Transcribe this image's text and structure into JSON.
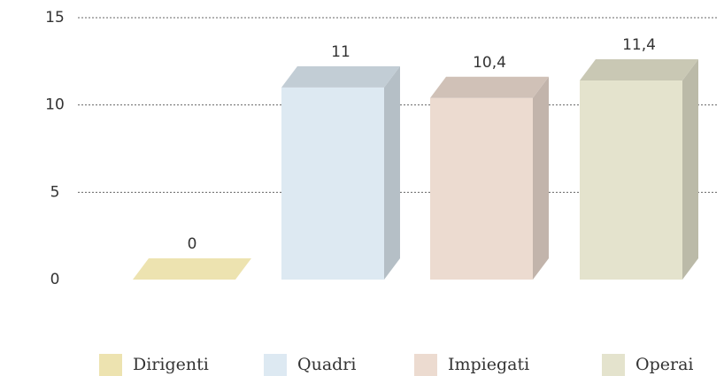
{
  "chart_data": {
    "type": "bar3d",
    "categories": [
      "Dirigenti",
      "Quadri",
      "Impiegati",
      "Operai"
    ],
    "values": [
      0,
      11,
      10.4,
      11.4
    ],
    "value_labels": [
      "0",
      "11",
      "10,4",
      "11,4"
    ],
    "colors": [
      "#ede3b0",
      "#dde9f2",
      "#ecdbd0",
      "#e4e3cd"
    ],
    "ylim": [
      0,
      15
    ],
    "yticks": [
      0,
      5,
      10,
      15
    ],
    "grid": true,
    "legend": "bottom"
  }
}
